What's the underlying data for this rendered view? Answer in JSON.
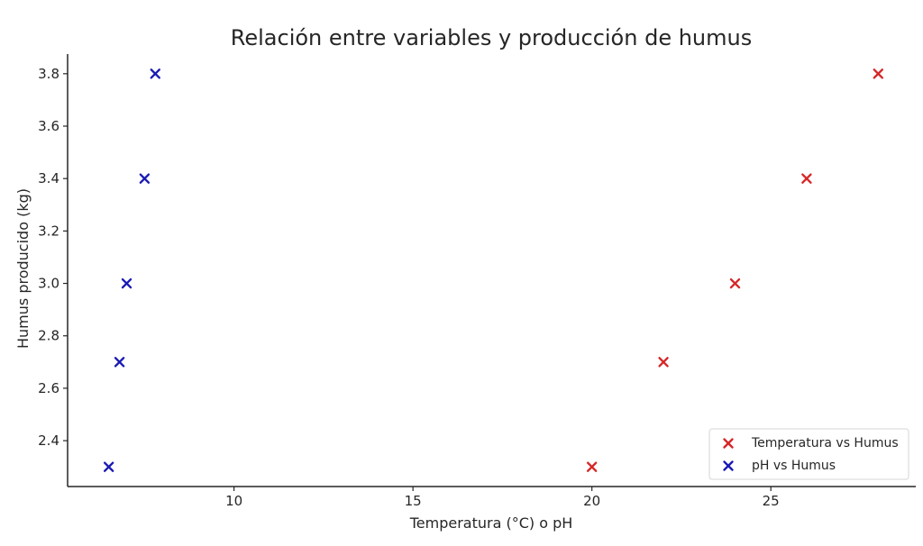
{
  "chart_data": {
    "type": "scatter",
    "title": "Relación entre variables y producción de humus",
    "xlabel": "Temperatura (°C) o pH",
    "ylabel": "Humus producido (kg)",
    "xlim": [
      5.35,
      29.05
    ],
    "ylim": [
      2.225,
      3.875
    ],
    "xticks": [
      10,
      15,
      20,
      25
    ],
    "yticks": [
      2.4,
      2.6,
      2.8,
      3.0,
      3.2,
      3.4,
      3.6,
      3.8
    ],
    "grid": false,
    "legend_position": "bottom-right",
    "series": [
      {
        "name": "Temperatura vs Humus",
        "color": "#d62728",
        "marker": "x",
        "x": [
          20,
          22,
          24,
          26,
          28
        ],
        "y": [
          2.3,
          2.7,
          3.0,
          3.4,
          3.8
        ]
      },
      {
        "name": "pH vs Humus",
        "color": "#1a1ab5",
        "marker": "x",
        "x": [
          6.5,
          6.8,
          7.0,
          7.5,
          7.8
        ],
        "y": [
          2.3,
          2.7,
          3.0,
          3.4,
          3.8
        ]
      }
    ]
  }
}
